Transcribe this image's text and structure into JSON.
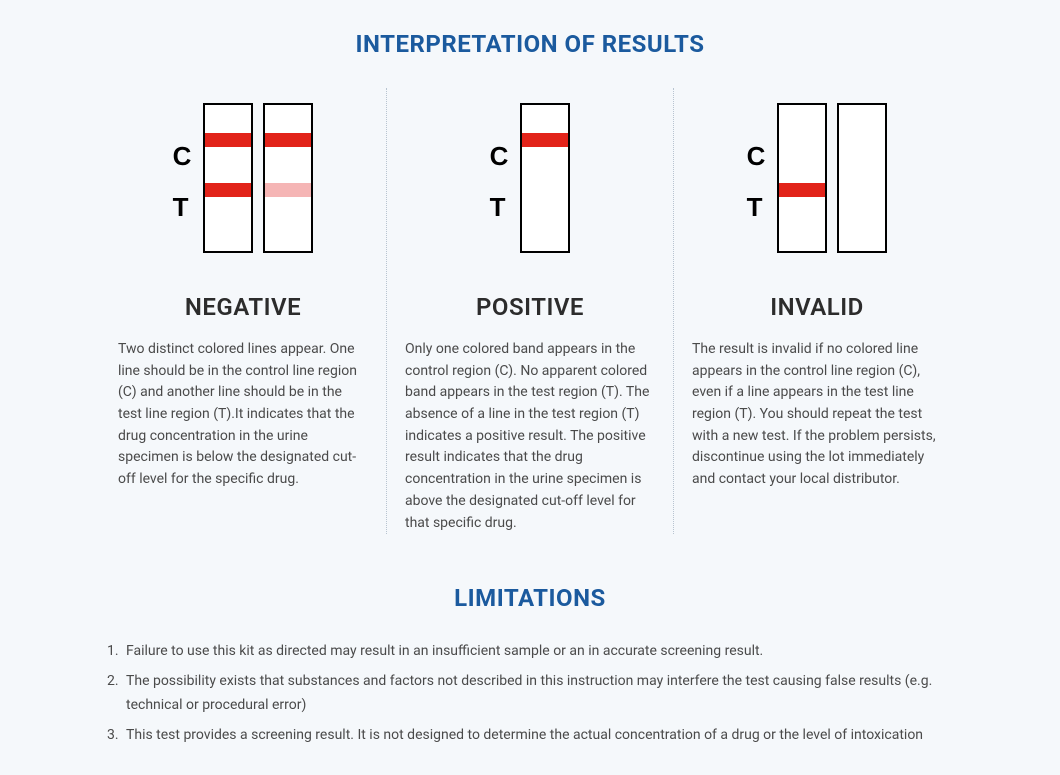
{
  "page_title": "INTERPRETATION OF RESULTS",
  "title_color": "#1b5a9e",
  "background_color": "#f5f8fb",
  "text_color": "#4a4a4a",
  "heading_color": "#2c2c2c",
  "divider_color": "#b8c4d0",
  "strip_border_color": "#000000",
  "strip_bg_color": "#ffffff",
  "band_red": "#e2231a",
  "band_pink": "#f5b5b5",
  "label_c": "C",
  "label_t": "T",
  "results": {
    "negative": {
      "heading": "NEGATIVE",
      "description": "Two distinct colored lines appear. One line should be in the control line region (C) and another line should be in the test line region (T).It indicates that the drug concentration in the urine specimen is below the designated cut-off level for the specific drug.",
      "strips": [
        {
          "c": "red",
          "t": "red"
        },
        {
          "c": "red",
          "t": "pink"
        }
      ]
    },
    "positive": {
      "heading": "POSITIVE",
      "description": "Only one colored band appears in the control region (C). No apparent colored band appears in the test region (T). The absence of a line in the test region (T) indicates a positive result. The positive result indicates that the drug concentration in the urine specimen is above the designated cut-off level for that specific drug.",
      "strips": [
        {
          "c": "red",
          "t": null
        }
      ]
    },
    "invalid": {
      "heading": "INVALID",
      "description": "The result is invalid if no colored line appears in the control line region (C), even if a line appears in the test line region (T). You should repeat the test with a new test. If the problem persists, discontinue using the lot immediately and contact your local distributor.",
      "strips": [
        {
          "c": null,
          "t": "red"
        },
        {
          "c": null,
          "t": null
        }
      ]
    }
  },
  "limitations_title": "LIMITATIONS",
  "limitations": [
    "Failure to use this kit as directed may result in an insufficient sample or an in accurate screening result.",
    "The possibility exists that substances and factors not described in this instruction may interfere the test causing false results (e.g. technical or procedural error)",
    "This test provides a screening result. It is not designed to determine the actual concentration of a drug or the level of intoxication"
  ]
}
